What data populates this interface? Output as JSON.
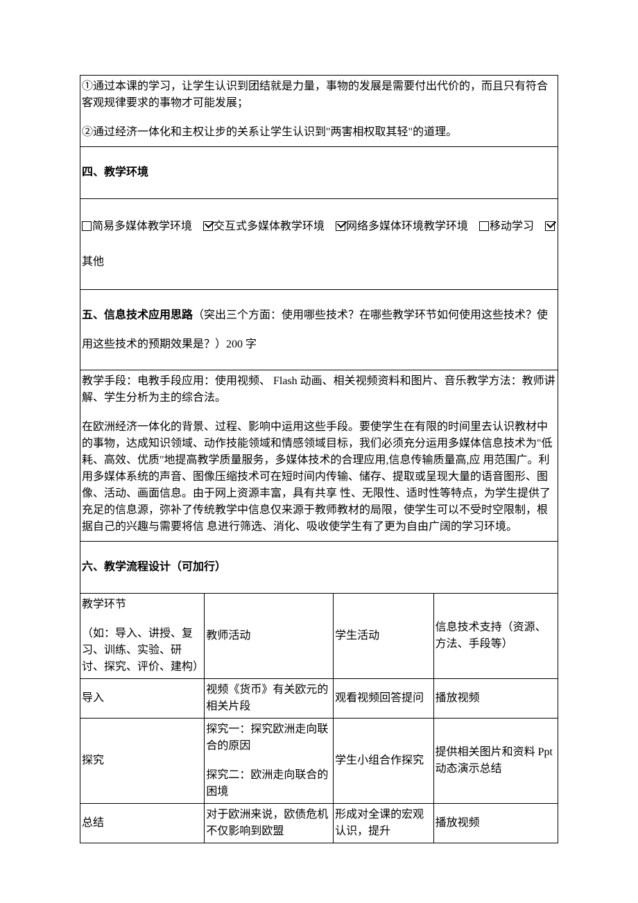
{
  "intro": {
    "p1": "①通过本课的学习，让学生认识到团结就是力量，事物的发展是需要付出代价的，而且只有符合客观规律要求的事物才可能发展；",
    "p2": "②通过经济一体化和主权让步的关系让学生认识到\"两害相权取其轻\"的道理。"
  },
  "section4": {
    "heading": "四、教学环境",
    "opt1": "简易多媒体教学环境",
    "opt2": "交互式多媒体教学环境",
    "opt3": "网络多媒体环境教学环境",
    "opt4": "移动学习",
    "opt5": "其他"
  },
  "section5": {
    "heading": "五、信息技术应用思路",
    "heading_note": "（突出三个方面：使用哪些技术？在哪些教学环节如何使用这些技术？使用这些技术的预期效果是？）200 字",
    "body1": "教学手段：电教手段应用：使用视频、 Flash 动画、相关视频资料和图片、音乐教学方法：教师讲解、学生分析为主的综合法。",
    "body2": "在欧洲经济一体化的背景、过程、影响中运用这些手段。要使学生在有限的时间里去认识教材中的事物，达成知识领域、动作技能领域和情感领域目标，我们必须充分运用多媒体信息技术为\"低耗、高效、优质\"地提高教学质量服务，多媒体技术的合理应用,信息传输质量高,应 用范围广。利用多媒体系统的声音、图像压缩技术可在短时间内传输、储存、提取或呈现大量的语音图形、图像、活动、画面信息。由于网上资源丰富，具有共享 性、无限性、适时性等特点，为学生提供了充足的信息源，弥补了传统教学中信息仅来源于教师教材的局限，使学生可以不受时空限制，根据自己的兴趣与需要将信 息进行筛选、消化、吸收使学生有了更为自由广阔的学习环境。"
  },
  "section6": {
    "heading": "六、教学流程设计（可加行）",
    "table": {
      "headers": {
        "c1_main": "教学环节",
        "c1_sub": "（如：导入、讲授、复习、训练、实验、研讨、探究、评价、建构）",
        "c2": "教师活动",
        "c3": "学生活动",
        "c4": "信息技术支持（资源、方法、手段等）"
      },
      "rows": [
        {
          "c1": "导入",
          "c2": "视频《货币》有关欧元的相关片段",
          "c3": "观看视频回答提问",
          "c4": "播放视频"
        },
        {
          "c1": "探究",
          "c2a": "探究一：探究欧洲走向联合的原因",
          "c2b": "探究二：欧洲走向联合的困境",
          "c3": "学生小组合作探究",
          "c4": "提供相关图片和资料 Ppt 动态演示总结"
        },
        {
          "c1": "总结",
          "c2": "对于欧洲来说，欧债危机不仅影响到欧盟",
          "c3": "形成对全课的宏观认识，提升",
          "c4": "播放视频"
        }
      ]
    }
  }
}
